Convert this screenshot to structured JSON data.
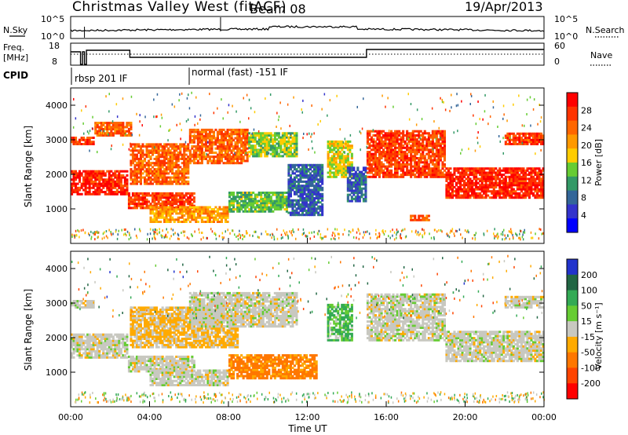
{
  "header": {
    "title": "Christmas Valley West (fitACF)",
    "beam": "Beam 08",
    "date": "19/Apr/2013"
  },
  "summary": {
    "nsky_label": "N.Sky",
    "nsearch_label": "N.Search",
    "freq_label_1": "Freq.",
    "freq_label_2": "[MHz]",
    "nave_label": "Nave",
    "cpid_label": "CPID",
    "left_ticks_noise": [
      "10^5",
      "10^0"
    ],
    "right_ticks_noise": [
      "10^5",
      "10^0"
    ],
    "left_ticks_freq": [
      "18",
      "8"
    ],
    "right_ticks_freq": [
      "60",
      "0"
    ],
    "cpid_1": "rbsp 201 IF",
    "cpid_2": "normal (fast) -151 IF"
  },
  "power_colorbar": {
    "label": "Power [dB]",
    "ticks": [
      "28",
      "24",
      "20",
      "16",
      "12",
      "8",
      "4"
    ],
    "colors": [
      "#ff0000",
      "#ff3300",
      "#ff6600",
      "#ff9900",
      "#ffcc00",
      "#66cc33",
      "#339966",
      "#336699",
      "#3333cc",
      "#0000ff"
    ]
  },
  "velocity_colorbar": {
    "label": "Velocity [m s⁻¹]",
    "ticks": [
      "200",
      "100",
      "50",
      "15",
      "-15",
      "-50",
      "-100",
      "-200"
    ],
    "colors": [
      "#2233cc",
      "#226644",
      "#33aa55",
      "#66cc33",
      "#c8c8c0",
      "#ffaa00",
      "#ff7700",
      "#ff4400",
      "#ff0000"
    ]
  },
  "chart_data": [
    {
      "type": "heatmap",
      "name": "power",
      "ylabel": "Slant Range [km]",
      "yticks": [
        1000,
        2000,
        3000,
        4000
      ],
      "ylim": [
        0,
        4500
      ],
      "xlim": [
        0,
        24
      ],
      "bands": [
        {
          "t": [
            0.0,
            2.9
          ],
          "r": [
            1400,
            2100
          ],
          "level": 28
        },
        {
          "t": [
            0.0,
            1.2
          ],
          "r": [
            2850,
            3100
          ],
          "level": 26
        },
        {
          "t": [
            1.2,
            3.1
          ],
          "r": [
            3100,
            3500
          ],
          "level": 24
        },
        {
          "t": [
            2.9,
            6.3
          ],
          "r": [
            1000,
            1500
          ],
          "level": 26
        },
        {
          "t": [
            3.0,
            6.0
          ],
          "r": [
            1700,
            2900
          ],
          "level": 24
        },
        {
          "t": [
            6.0,
            9.0
          ],
          "r": [
            2300,
            3300
          ],
          "level": 24
        },
        {
          "t": [
            9.0,
            11.5
          ],
          "r": [
            2500,
            3200
          ],
          "level": 14
        },
        {
          "t": [
            4.0,
            8.0
          ],
          "r": [
            600,
            1100
          ],
          "level": 20
        },
        {
          "t": [
            8.0,
            11.0
          ],
          "r": [
            900,
            1500
          ],
          "level": 12
        },
        {
          "t": [
            11.0,
            12.8
          ],
          "r": [
            800,
            2300
          ],
          "level": 6
        },
        {
          "t": [
            13.0,
            14.3
          ],
          "r": [
            1900,
            3000
          ],
          "level": 16
        },
        {
          "t": [
            14.0,
            15.0
          ],
          "r": [
            1200,
            2200
          ],
          "level": 6
        },
        {
          "t": [
            15.0,
            19.0
          ],
          "r": [
            1900,
            3300
          ],
          "level": 26
        },
        {
          "t": [
            19.0,
            24.0
          ],
          "r": [
            1300,
            2200
          ],
          "level": 28
        },
        {
          "t": [
            22.0,
            24.0
          ],
          "r": [
            2850,
            3200
          ],
          "level": 26
        },
        {
          "t": [
            17.2,
            18.2
          ],
          "r": [
            650,
            800
          ],
          "level": 24
        }
      ]
    },
    {
      "type": "heatmap",
      "name": "velocity",
      "ylabel": "Slant Range [km]",
      "xlabel": "Time UT",
      "xticks": [
        "00:00",
        "04:00",
        "08:00",
        "12:00",
        "16:00",
        "20:00",
        "00:00"
      ],
      "yticks": [
        1000,
        2000,
        3000,
        4000
      ],
      "ylim": [
        0,
        4500
      ],
      "xlim": [
        0,
        24
      ],
      "bands": [
        {
          "t": [
            0.0,
            2.9
          ],
          "r": [
            1400,
            2100
          ],
          "v": 0
        },
        {
          "t": [
            0.0,
            1.2
          ],
          "r": [
            2850,
            3100
          ],
          "v": 0
        },
        {
          "t": [
            2.9,
            6.3
          ],
          "r": [
            1000,
            1500
          ],
          "v": 0
        },
        {
          "t": [
            3.0,
            8.5
          ],
          "r": [
            1700,
            2900
          ],
          "v": -20
        },
        {
          "t": [
            6.0,
            11.5
          ],
          "r": [
            2300,
            3300
          ],
          "v": 0
        },
        {
          "t": [
            4.0,
            8.0
          ],
          "r": [
            600,
            1100
          ],
          "v": 0
        },
        {
          "t": [
            8.0,
            12.5
          ],
          "r": [
            800,
            1500
          ],
          "v": -60
        },
        {
          "t": [
            13.0,
            14.3
          ],
          "r": [
            1900,
            3000
          ],
          "v": 30
        },
        {
          "t": [
            15.0,
            19.0
          ],
          "r": [
            1900,
            3300
          ],
          "v": 0
        },
        {
          "t": [
            19.0,
            24.0
          ],
          "r": [
            1300,
            2200
          ],
          "v": 0
        },
        {
          "t": [
            22.0,
            24.0
          ],
          "r": [
            2850,
            3200
          ],
          "v": 0
        }
      ]
    }
  ]
}
